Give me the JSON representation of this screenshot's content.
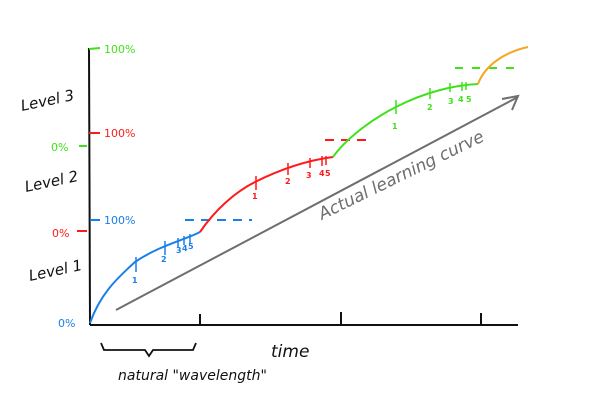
{
  "colors": {
    "level1": "#1a7fe8",
    "level2": "#ff1a1a",
    "level3": "#3fe21a",
    "next": "#f5a623",
    "actual": "#6e6e6e",
    "axis": "#111111"
  },
  "y_axis": {
    "levels": [
      "Level 1",
      "Level 2",
      "Level 3"
    ],
    "level1_zero": "0%",
    "level1_full": "100%",
    "level2_zero": "0%",
    "level2_full": "100%",
    "level3_zero": "0%",
    "level3_full": "100%"
  },
  "x_axis": {
    "label": "time",
    "wavelength_label": "natural \"wavelength\""
  },
  "actual_curve_label": "Actual learning curve",
  "level1_ticks": [
    "1",
    "2",
    "3",
    "4",
    "5"
  ],
  "level2_ticks": [
    "1",
    "2",
    "3",
    "4",
    "5"
  ],
  "level3_ticks": [
    "1",
    "2",
    "3",
    "4",
    "5"
  ]
}
